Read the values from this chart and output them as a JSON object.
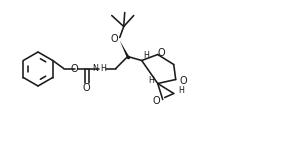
{
  "bg": "#ffffff",
  "lc": "#1a1a1a",
  "lw": 1.15,
  "fs": 5.8,
  "fw": 2.96,
  "fh": 1.56,
  "dpi": 100,
  "xlim": [
    -5,
    291
  ],
  "ylim": [
    -5,
    151
  ]
}
